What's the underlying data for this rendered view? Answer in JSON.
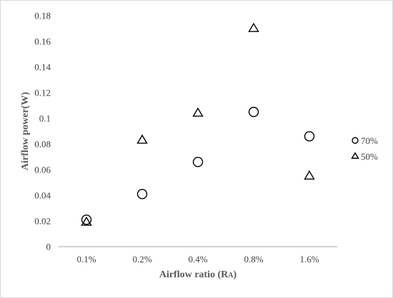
{
  "chart_data": {
    "type": "scatter",
    "title": "",
    "xlabel": "Airflow ratio (R",
    "xlabel_subscript": "A",
    "xlabel_suffix": ")",
    "ylabel": "Airflow power(W)",
    "categories": [
      "0.1%",
      "0.2%",
      "0.4%",
      "0.8%",
      "1.6%"
    ],
    "y_ticks": [
      "0",
      "0.02",
      "0.04",
      "0.06",
      "0.08",
      "0.1",
      "0.12",
      "0.14",
      "0.16",
      "0.18"
    ],
    "ylim": [
      0,
      0.18
    ],
    "grid": false,
    "legend_position": "right",
    "series": [
      {
        "name": "70%",
        "marker": "circle",
        "color": "#000000",
        "values": [
          0.021,
          0.041,
          0.066,
          0.105,
          0.086
        ]
      },
      {
        "name": "50%",
        "marker": "triangle",
        "color": "#000000",
        "values": [
          0.019,
          0.083,
          0.104,
          0.17,
          0.055
        ]
      }
    ]
  }
}
